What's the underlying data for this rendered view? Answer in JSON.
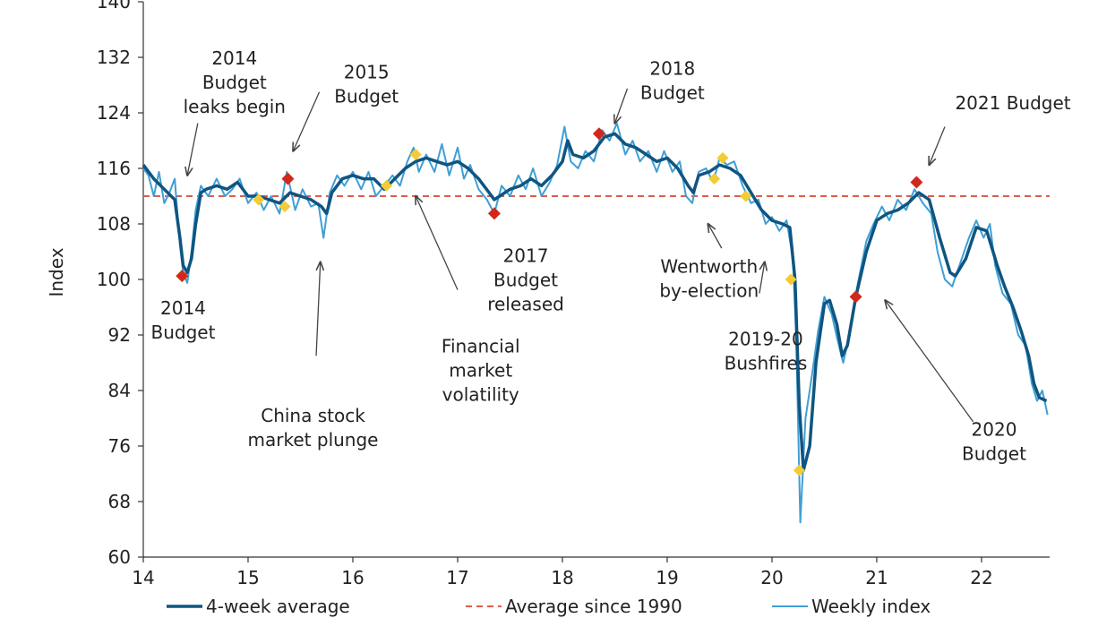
{
  "chart_data": {
    "type": "line",
    "ylabel": "Index",
    "ylim": [
      60,
      140
    ],
    "yticks": [
      60,
      68,
      76,
      84,
      92,
      100,
      108,
      116,
      124,
      132,
      140
    ],
    "xlim": [
      14,
      22.65
    ],
    "xticks": [
      14,
      15,
      16,
      17,
      18,
      19,
      20,
      21,
      22
    ],
    "grid": false,
    "legend_position": "bottom",
    "colors": {
      "average_4wk": "#0f5581",
      "weekly": "#3f9fd4",
      "long_run_average": "#d9604b",
      "budget_marker": "#d2281c",
      "event_marker": "#f2cb36"
    },
    "series": [
      {
        "name": "4-week average",
        "values": [
          [
            14.0,
            116.5
          ],
          [
            14.1,
            114.5
          ],
          [
            14.2,
            113.0
          ],
          [
            14.3,
            111.5
          ],
          [
            14.35,
            106.0
          ],
          [
            14.38,
            102.0
          ],
          [
            14.42,
            101.0
          ],
          [
            14.46,
            103.0
          ],
          [
            14.5,
            108.0
          ],
          [
            14.55,
            112.5
          ],
          [
            14.6,
            113.0
          ],
          [
            14.7,
            113.5
          ],
          [
            14.8,
            113.0
          ],
          [
            14.9,
            114.0
          ],
          [
            15.0,
            112.0
          ],
          [
            15.1,
            112.0
          ],
          [
            15.2,
            111.5
          ],
          [
            15.3,
            111.0
          ],
          [
            15.4,
            112.5
          ],
          [
            15.5,
            112.0
          ],
          [
            15.6,
            111.5
          ],
          [
            15.7,
            110.5
          ],
          [
            15.75,
            109.5
          ],
          [
            15.8,
            112.5
          ],
          [
            15.9,
            114.5
          ],
          [
            16.0,
            115.0
          ],
          [
            16.1,
            114.5
          ],
          [
            16.2,
            114.5
          ],
          [
            16.3,
            113.0
          ],
          [
            16.4,
            114.5
          ],
          [
            16.5,
            116.0
          ],
          [
            16.6,
            117.0
          ],
          [
            16.7,
            117.5
          ],
          [
            16.8,
            117.0
          ],
          [
            16.9,
            116.5
          ],
          [
            17.0,
            117.0
          ],
          [
            17.1,
            116.0
          ],
          [
            17.2,
            114.5
          ],
          [
            17.3,
            112.5
          ],
          [
            17.35,
            111.5
          ],
          [
            17.4,
            112.0
          ],
          [
            17.5,
            113.0
          ],
          [
            17.6,
            113.5
          ],
          [
            17.7,
            114.5
          ],
          [
            17.8,
            113.5
          ],
          [
            17.9,
            115.0
          ],
          [
            18.0,
            117.0
          ],
          [
            18.05,
            120.0
          ],
          [
            18.1,
            118.0
          ],
          [
            18.2,
            117.5
          ],
          [
            18.3,
            118.5
          ],
          [
            18.4,
            120.5
          ],
          [
            18.5,
            121.0
          ],
          [
            18.6,
            119.5
          ],
          [
            18.7,
            119.0
          ],
          [
            18.8,
            118.0
          ],
          [
            18.9,
            117.0
          ],
          [
            19.0,
            117.5
          ],
          [
            19.1,
            116.0
          ],
          [
            19.2,
            113.5
          ],
          [
            19.25,
            112.5
          ],
          [
            19.3,
            115.0
          ],
          [
            19.4,
            115.5
          ],
          [
            19.5,
            116.5
          ],
          [
            19.6,
            116.0
          ],
          [
            19.7,
            115.0
          ],
          [
            19.8,
            112.5
          ],
          [
            19.9,
            110.0
          ],
          [
            20.0,
            108.5
          ],
          [
            20.1,
            108.0
          ],
          [
            20.17,
            107.5
          ],
          [
            20.22,
            100.0
          ],
          [
            20.26,
            82.0
          ],
          [
            20.3,
            72.5
          ],
          [
            20.36,
            76.0
          ],
          [
            20.42,
            88.0
          ],
          [
            20.5,
            96.5
          ],
          [
            20.55,
            97.0
          ],
          [
            20.62,
            93.5
          ],
          [
            20.67,
            89.0
          ],
          [
            20.72,
            90.5
          ],
          [
            20.8,
            97.5
          ],
          [
            20.9,
            104.0
          ],
          [
            21.0,
            108.5
          ],
          [
            21.1,
            109.5
          ],
          [
            21.2,
            110.0
          ],
          [
            21.3,
            111.0
          ],
          [
            21.4,
            112.5
          ],
          [
            21.5,
            111.5
          ],
          [
            21.6,
            106.0
          ],
          [
            21.7,
            101.0
          ],
          [
            21.75,
            100.5
          ],
          [
            21.85,
            103.0
          ],
          [
            21.95,
            107.5
          ],
          [
            22.05,
            107.0
          ],
          [
            22.15,
            102.0
          ],
          [
            22.22,
            99.0
          ],
          [
            22.3,
            96.0
          ],
          [
            22.38,
            92.5
          ],
          [
            22.45,
            89.0
          ],
          [
            22.5,
            85.0
          ],
          [
            22.55,
            83.0
          ],
          [
            22.62,
            82.5
          ]
        ]
      },
      {
        "name": "Weekly index",
        "values": [
          [
            14.0,
            116.0
          ],
          [
            14.05,
            115.0
          ],
          [
            14.1,
            112.0
          ],
          [
            14.15,
            115.5
          ],
          [
            14.2,
            111.0
          ],
          [
            14.25,
            112.5
          ],
          [
            14.3,
            114.5
          ],
          [
            14.35,
            105.0
          ],
          [
            14.38,
            101.0
          ],
          [
            14.42,
            99.5
          ],
          [
            14.46,
            104.0
          ],
          [
            14.5,
            110.0
          ],
          [
            14.55,
            113.5
          ],
          [
            14.62,
            112.0
          ],
          [
            14.7,
            114.5
          ],
          [
            14.78,
            112.0
          ],
          [
            14.85,
            113.0
          ],
          [
            14.92,
            114.5
          ],
          [
            15.0,
            111.0
          ],
          [
            15.08,
            112.5
          ],
          [
            15.15,
            110.0
          ],
          [
            15.22,
            112.0
          ],
          [
            15.3,
            109.5
          ],
          [
            15.37,
            115.5
          ],
          [
            15.45,
            110.0
          ],
          [
            15.52,
            113.0
          ],
          [
            15.6,
            110.5
          ],
          [
            15.67,
            111.0
          ],
          [
            15.72,
            106.0
          ],
          [
            15.78,
            112.5
          ],
          [
            15.85,
            115.0
          ],
          [
            15.92,
            113.5
          ],
          [
            16.0,
            115.5
          ],
          [
            16.08,
            113.0
          ],
          [
            16.15,
            115.5
          ],
          [
            16.22,
            112.0
          ],
          [
            16.3,
            113.5
          ],
          [
            16.38,
            115.0
          ],
          [
            16.45,
            113.5
          ],
          [
            16.52,
            117.0
          ],
          [
            16.58,
            119.0
          ],
          [
            16.63,
            115.5
          ],
          [
            16.7,
            118.0
          ],
          [
            16.78,
            115.5
          ],
          [
            16.85,
            119.5
          ],
          [
            16.92,
            115.0
          ],
          [
            17.0,
            119.0
          ],
          [
            17.06,
            114.5
          ],
          [
            17.12,
            116.5
          ],
          [
            17.2,
            113.0
          ],
          [
            17.28,
            111.5
          ],
          [
            17.35,
            109.5
          ],
          [
            17.42,
            113.5
          ],
          [
            17.5,
            112.0
          ],
          [
            17.58,
            115.0
          ],
          [
            17.65,
            113.0
          ],
          [
            17.72,
            116.0
          ],
          [
            17.8,
            112.0
          ],
          [
            17.88,
            114.0
          ],
          [
            17.95,
            116.5
          ],
          [
            18.02,
            122.0
          ],
          [
            18.08,
            117.0
          ],
          [
            18.15,
            116.0
          ],
          [
            18.22,
            118.5
          ],
          [
            18.3,
            117.0
          ],
          [
            18.38,
            121.5
          ],
          [
            18.45,
            120.0
          ],
          [
            18.52,
            122.5
          ],
          [
            18.6,
            118.0
          ],
          [
            18.67,
            120.0
          ],
          [
            18.74,
            117.0
          ],
          [
            18.82,
            118.5
          ],
          [
            18.9,
            115.5
          ],
          [
            18.97,
            118.5
          ],
          [
            19.05,
            115.5
          ],
          [
            19.12,
            117.0
          ],
          [
            19.18,
            112.0
          ],
          [
            19.24,
            111.0
          ],
          [
            19.3,
            115.5
          ],
          [
            19.37,
            116.0
          ],
          [
            19.44,
            114.0
          ],
          [
            19.5,
            117.5
          ],
          [
            19.57,
            116.5
          ],
          [
            19.64,
            117.0
          ],
          [
            19.72,
            113.5
          ],
          [
            19.8,
            111.0
          ],
          [
            19.87,
            111.5
          ],
          [
            19.94,
            108.0
          ],
          [
            20.0,
            109.0
          ],
          [
            20.07,
            107.0
          ],
          [
            20.14,
            108.5
          ],
          [
            20.2,
            103.0
          ],
          [
            20.23,
            92.0
          ],
          [
            20.27,
            65.0
          ],
          [
            20.32,
            80.0
          ],
          [
            20.38,
            86.0
          ],
          [
            20.44,
            92.5
          ],
          [
            20.5,
            97.5
          ],
          [
            20.57,
            95.0
          ],
          [
            20.63,
            91.0
          ],
          [
            20.68,
            88.0
          ],
          [
            20.74,
            92.0
          ],
          [
            20.82,
            99.5
          ],
          [
            20.9,
            105.5
          ],
          [
            20.97,
            108.0
          ],
          [
            21.05,
            110.5
          ],
          [
            21.12,
            108.5
          ],
          [
            21.2,
            111.5
          ],
          [
            21.28,
            110.0
          ],
          [
            21.36,
            113.0
          ],
          [
            21.44,
            111.0
          ],
          [
            21.52,
            109.5
          ],
          [
            21.58,
            104.0
          ],
          [
            21.65,
            100.0
          ],
          [
            21.72,
            99.0
          ],
          [
            21.8,
            102.5
          ],
          [
            21.88,
            106.0
          ],
          [
            21.95,
            108.5
          ],
          [
            22.02,
            106.0
          ],
          [
            22.08,
            108.0
          ],
          [
            22.13,
            102.0
          ],
          [
            22.2,
            98.0
          ],
          [
            22.28,
            96.5
          ],
          [
            22.35,
            92.0
          ],
          [
            22.42,
            90.5
          ],
          [
            22.48,
            85.0
          ],
          [
            22.53,
            82.5
          ],
          [
            22.58,
            84.0
          ],
          [
            22.63,
            80.5
          ]
        ]
      },
      {
        "name": "Average since 1990",
        "values": [
          [
            14.0,
            112.0
          ],
          [
            22.65,
            112.0
          ]
        ]
      }
    ],
    "budget_markers": [
      [
        14.37,
        100.5
      ],
      [
        15.38,
        114.5
      ],
      [
        17.35,
        109.5
      ],
      [
        18.35,
        121.0
      ],
      [
        20.8,
        97.5
      ],
      [
        21.38,
        114.0
      ]
    ],
    "event_markers": [
      [
        15.1,
        111.5
      ],
      [
        15.35,
        110.5
      ],
      [
        16.32,
        113.5
      ],
      [
        16.6,
        118.0
      ],
      [
        19.45,
        114.5
      ],
      [
        19.53,
        117.5
      ],
      [
        19.75,
        112.0
      ],
      [
        20.18,
        100.0
      ],
      [
        20.26,
        72.5
      ]
    ],
    "annotations": [
      {
        "lines": [
          "2014",
          "Budget",
          "leaks begin"
        ],
        "x": 14.87,
        "y": 131.0
      },
      {
        "lines": [
          "2015",
          "Budget"
        ],
        "x": 16.13,
        "y": 129.0
      },
      {
        "lines": [
          "2018",
          "Budget"
        ],
        "x": 19.05,
        "y": 129.5
      },
      {
        "lines": [
          "2021 Budget"
        ],
        "x": 22.3,
        "y": 124.5
      },
      {
        "lines": [
          "2014",
          "Budget"
        ],
        "x": 14.38,
        "y": 95.0
      },
      {
        "lines": [
          "China stock",
          "market plunge"
        ],
        "x": 15.62,
        "y": 79.5
      },
      {
        "lines": [
          "Financial",
          "market",
          "volatility"
        ],
        "x": 17.22,
        "y": 89.5
      },
      {
        "lines": [
          "2017",
          "Budget",
          "released"
        ],
        "x": 17.65,
        "y": 102.5
      },
      {
        "lines": [
          "Wentworth",
          "by-election"
        ],
        "x": 19.4,
        "y": 101.0
      },
      {
        "lines": [
          "2019-20",
          "Bushfires"
        ],
        "x": 19.94,
        "y": 90.5
      },
      {
        "lines": [
          "2020",
          "Budget"
        ],
        "x": 22.12,
        "y": 77.5
      }
    ],
    "legend": [
      "4-week average",
      "Average since 1990",
      "Weekly index"
    ]
  }
}
